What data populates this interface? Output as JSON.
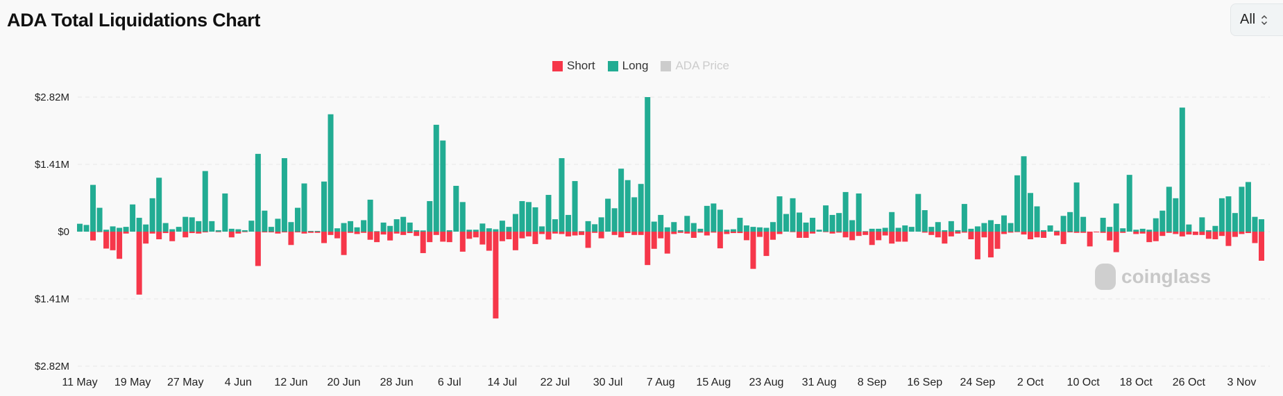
{
  "header": {
    "title": "ADA Total Liquidations Chart",
    "range_select": "All"
  },
  "legend": [
    {
      "label": "Short",
      "color": "#f6374a",
      "active": true
    },
    {
      "label": "Long",
      "color": "#22ac93",
      "active": true
    },
    {
      "label": "ADA Price",
      "color": "#cccccc",
      "active": false
    }
  ],
  "watermark": "coinglass",
  "chart_data": {
    "type": "bar",
    "title": "ADA Total Liquidations Chart",
    "xlabel": "",
    "ylabel": "",
    "unit": "USD millions",
    "ylim": [
      -2.82,
      2.82
    ],
    "grid": true,
    "legend_position": "top-center",
    "y_ticks": [
      {
        "value": 2.82,
        "label": "$2.82M"
      },
      {
        "value": 1.41,
        "label": "$1.41M"
      },
      {
        "value": 0,
        "label": "$0"
      },
      {
        "value": -1.41,
        "label": "$1.41M"
      },
      {
        "value": -2.82,
        "label": "$2.82M"
      }
    ],
    "date_range": [
      "11 May",
      "6 Nov"
    ],
    "tick_every_days": 8,
    "x_ticks": [
      "11 May",
      "19 May",
      "27 May",
      "4 Jun",
      "12 Jun",
      "20 Jun",
      "28 Jun",
      "6 Jul",
      "14 Jul",
      "22 Jul",
      "30 Jul",
      "7 Aug",
      "15 Aug",
      "23 Aug",
      "31 Aug",
      "8 Sep",
      "16 Sep",
      "24 Sep",
      "2 Oct",
      "10 Oct",
      "18 Oct",
      "26 Oct",
      "3 Nov"
    ],
    "series": [
      {
        "name": "Long",
        "color": "#22ac93",
        "values": [
          0.165,
          0.14,
          0.98,
          0.5,
          0.04,
          0.11,
          0.08,
          0.1,
          0.57,
          0.29,
          0.15,
          0.7,
          1.13,
          0.18,
          0.05,
          0.1,
          0.31,
          0.3,
          0.22,
          1.27,
          0.22,
          0.03,
          0.8,
          0.06,
          0.05,
          0.03,
          0.23,
          1.63,
          0.44,
          0.1,
          0.27,
          1.54,
          0.2,
          0.5,
          1.01,
          0.015,
          0.015,
          1.05,
          2.46,
          0.07,
          0.18,
          0.22,
          0.09,
          0.24,
          0.67,
          0.01,
          0.19,
          0.12,
          0.26,
          0.31,
          0.19,
          0.03,
          0.025,
          0.64,
          2.24,
          1.91,
          0.03,
          0.96,
          0.62,
          0.04,
          0.04,
          0.17,
          0.07,
          0.05,
          0.23,
          0.1,
          0.37,
          0.64,
          0.62,
          0.51,
          0.11,
          0.77,
          0.26,
          1.54,
          0.35,
          1.06,
          0.01,
          0.22,
          0.155,
          0.3,
          0.69,
          0.49,
          1.32,
          1.08,
          0.72,
          1.0,
          2.82,
          0.21,
          0.35,
          0.09,
          0.2,
          0.03,
          0.33,
          0.18,
          0.06,
          0.54,
          0.59,
          0.46,
          0.04,
          0.05,
          0.29,
          0.13,
          0.1,
          0.09,
          0.08,
          0.2,
          0.74,
          0.37,
          0.7,
          0.4,
          0.19,
          0.29,
          0.04,
          0.55,
          0.35,
          0.39,
          0.83,
          0.24,
          0.8,
          0.01,
          0.06,
          0.06,
          0.08,
          0.41,
          0.08,
          0.13,
          0.1,
          0.79,
          0.45,
          0.1,
          0.2,
          0.03,
          0.22,
          0.03,
          0.58,
          0.06,
          0.11,
          0.18,
          0.24,
          0.16,
          0.34,
          0.18,
          1.18,
          1.58,
          0.81,
          0.53,
          0.03,
          0.13,
          0.02,
          0.33,
          0.41,
          1.03,
          0.31,
          0,
          0,
          0.29,
          0.1,
          0.59,
          0.07,
          1.19,
          0.04,
          0.06,
          0.04,
          0.28,
          0.44,
          0.94,
          0.7,
          2.6,
          0.15,
          0,
          0.3,
          0.03,
          0.12,
          0.7,
          0.74,
          0.39,
          0.94,
          1.04,
          0.31,
          0.26
        ]
      },
      {
        "name": "Short",
        "color": "#f6374a",
        "values": [
          0,
          0,
          0.185,
          0.01,
          0.355,
          0.39,
          0.57,
          0.04,
          0,
          1.32,
          0.25,
          0.04,
          0.16,
          0.03,
          0.2,
          0,
          0.12,
          0.03,
          0.04,
          0.015,
          0,
          0.01,
          0,
          0.12,
          0.04,
          0.01,
          0,
          0.72,
          0.015,
          0.015,
          0.04,
          0.015,
          0.28,
          0.015,
          0.04,
          0.025,
          0.025,
          0.24,
          0.07,
          0.14,
          0.49,
          0.025,
          0.05,
          0.025,
          0.17,
          0.22,
          0.06,
          0.185,
          0.04,
          0.07,
          0.03,
          0.09,
          0.45,
          0.22,
          0.07,
          0.21,
          0.22,
          0,
          0.42,
          0.15,
          0.12,
          0.27,
          0.4,
          1.82,
          0.2,
          0.16,
          0.39,
          0.14,
          0.1,
          0.26,
          0.05,
          0.165,
          0.04,
          0.05,
          0.1,
          0.08,
          0.07,
          0.34,
          0.025,
          0.14,
          0,
          0.07,
          0.12,
          0.03,
          0.07,
          0.07,
          0.7,
          0.36,
          0.14,
          0.46,
          0.05,
          0.025,
          0.04,
          0.13,
          0.02,
          0.08,
          0.02,
          0.35,
          0.05,
          0.03,
          0.03,
          0.18,
          0.78,
          0.11,
          0.51,
          0.17,
          0.05,
          0,
          0.01,
          0.13,
          0.13,
          0.04,
          0,
          0.01,
          0.04,
          0.02,
          0.12,
          0.18,
          0.09,
          0.07,
          0.28,
          0.18,
          0.08,
          0.25,
          0.21,
          0.21,
          0,
          0,
          0.02,
          0.07,
          0.12,
          0.25,
          0.1,
          0.04,
          0.02,
          0.16,
          0.58,
          0.12,
          0.54,
          0.36,
          0.05,
          0.02,
          0.01,
          0.06,
          0.16,
          0.12,
          0.13,
          0,
          0.08,
          0.26,
          0.015,
          0.025,
          0.025,
          0.31,
          0.015,
          0.025,
          0.185,
          0.43,
          0.025,
          0,
          0.05,
          0.04,
          0.22,
          0.2,
          0.09,
          0.025,
          0.05,
          0.1,
          0.06,
          0.07,
          0.07,
          0.15,
          0.16,
          0.09,
          0.3,
          0.11,
          0.05,
          0.03,
          0.24,
          0.61
        ]
      }
    ]
  }
}
